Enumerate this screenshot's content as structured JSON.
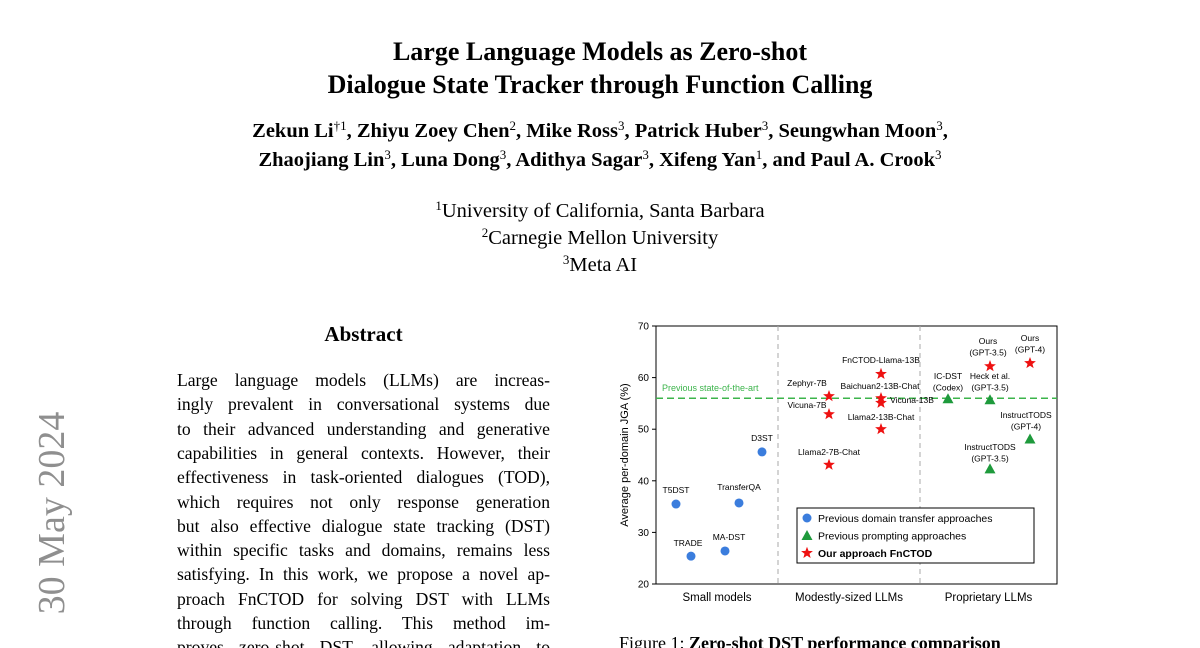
{
  "arxiv_stamp": "30 May 2024",
  "header": {
    "title": [
      "Large Language Models as Zero-shot",
      "Dialogue State Tracker through Function Calling"
    ],
    "author_lines": [
      [
        {
          "name": "Zekun Li",
          "affil": "†1",
          "sep": ","
        },
        {
          "name": "Zhiyu Zoey Chen",
          "affil": "2",
          "sep": ","
        },
        {
          "name": "Mike Ross",
          "affil": "3",
          "sep": ","
        },
        {
          "name": "Patrick Huber",
          "affil": "3",
          "sep": ","
        },
        {
          "name": "Seungwhan Moon",
          "affil": "3",
          "sep": ","
        }
      ],
      [
        {
          "name": "Zhaojiang Lin",
          "affil": "3",
          "sep": ","
        },
        {
          "name": "Luna Dong",
          "affil": "3",
          "sep": ","
        },
        {
          "name": "Adithya Sagar",
          "affil": "3",
          "sep": ","
        },
        {
          "name": "Xifeng Yan",
          "affil": "1",
          "sep": ", and"
        },
        {
          "name": "Paul A. Crook",
          "affil": "3"
        }
      ]
    ],
    "affiliations": [
      {
        "num": "1",
        "name": "University of California, Santa Barbara"
      },
      {
        "num": "2",
        "name": "Carnegie Mellon University"
      },
      {
        "num": "3",
        "name": "Meta AI"
      }
    ]
  },
  "abstract": {
    "heading": "Abstract",
    "lines": [
      "Large language models (LLMs) are increas-",
      "ingly prevalent in conversational systems due",
      "to their advanced understanding and generative",
      "capabilities in general contexts. However, their",
      "effectiveness in task-oriented dialogues (TOD),",
      "which requires not only response generation",
      "but also effective dialogue state tracking (DST)",
      "within specific tasks and domains, remains less",
      "satisfying. In this work, we propose a novel ap-",
      "proach FnCTOD for solving DST with LLMs",
      "through function calling. This method im-",
      "proves zero-shot DST, allowing adaptation to"
    ]
  },
  "figure": {
    "label": "Figure 1:",
    "caption": "Zero-shot DST performance comparison"
  },
  "chart_data": {
    "type": "scatter",
    "y_label": "Average per-domain JGA (%)",
    "categories": [
      "Small models",
      "Modestly-sized LLMs",
      "Proprietary LLMs"
    ],
    "ylim": [
      20,
      70
    ],
    "yticks": [
      20,
      30,
      40,
      50,
      60,
      70
    ],
    "reference_line": {
      "value": 56,
      "label": "Previous state-of-the-art",
      "color": "#3cb44b"
    },
    "legend": "bottom-right",
    "series": [
      {
        "name": "Previous domain transfer approaches",
        "color": "#3b7ddd",
        "marker": "circle",
        "labels": [
          [
            "T5DST"
          ],
          [
            "TRADE"
          ],
          [
            "MA-DST"
          ],
          [
            "TransferQA"
          ],
          [
            "D3ST"
          ]
        ],
        "values": [
          35.5,
          25.4,
          26.4,
          35.7,
          45.6
        ]
      },
      {
        "name": "Previous prompting approaches",
        "color": "#1e9a3c",
        "marker": "triangle",
        "labels": [
          [
            "IC-DST",
            "(Codex)"
          ],
          [
            "Heck et al.",
            "(GPT-3.5)"
          ],
          [
            "InstructTODS",
            "(GPT-3.5)"
          ],
          [
            "InstructTODS",
            "(GPT-4)"
          ]
        ],
        "values": [
          55.9,
          55.7,
          42.3,
          48.1
        ]
      },
      {
        "name": "Our approach FnCTOD",
        "color": "#ee1111",
        "marker": "star",
        "labels": [
          [
            "Zephyr-7B"
          ],
          [
            "Vicuna-7B"
          ],
          [
            "Llama2-7B-Chat"
          ],
          [
            "FnCTOD-Llama-13B"
          ],
          [
            "Baichuan2-13B-Chat"
          ],
          [
            "Vicuna-13B"
          ],
          [
            "Llama2-13B-Chat"
          ],
          [
            "Ours",
            "(GPT-3.5)"
          ],
          [
            "Ours",
            "(GPT-4)"
          ]
        ],
        "values": [
          56.4,
          52.9,
          43.1,
          60.7,
          56.0,
          55.1,
          50.0,
          62.2,
          62.8
        ]
      }
    ]
  }
}
